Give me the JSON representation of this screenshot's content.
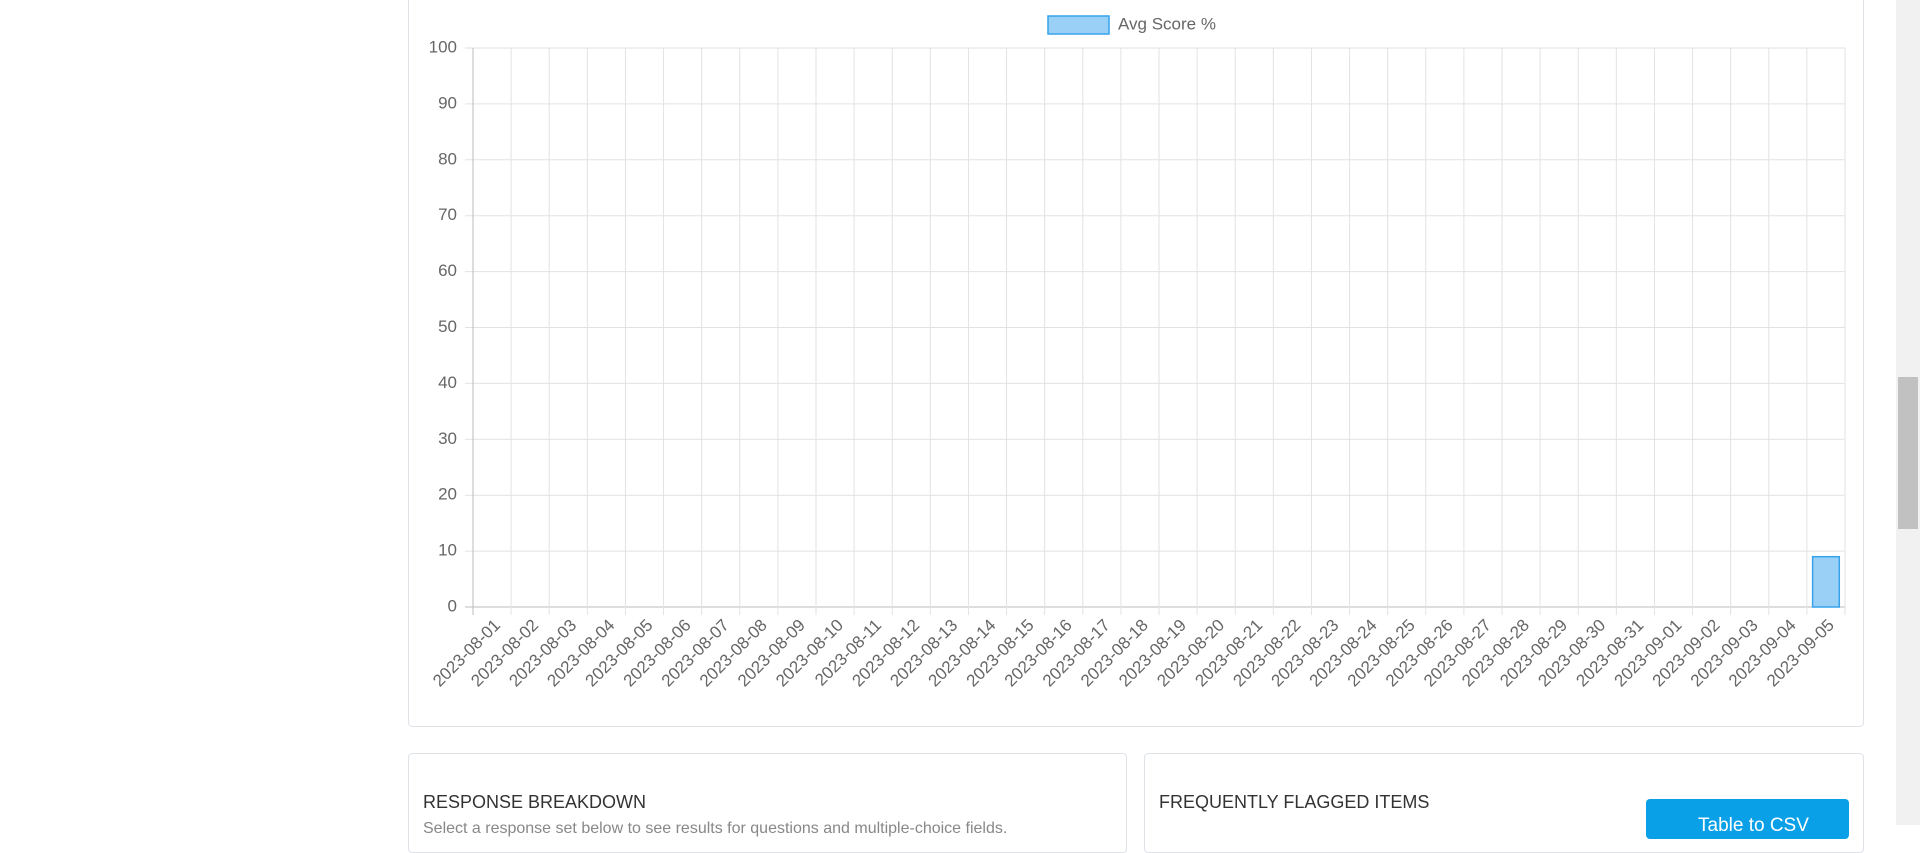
{
  "chart_data": {
    "type": "bar",
    "legend": "Avg Score %",
    "color": "#9ad0f5",
    "border_color": "#36a2eb",
    "categories": [
      "2023-08-01",
      "2023-08-02",
      "2023-08-03",
      "2023-08-04",
      "2023-08-05",
      "2023-08-06",
      "2023-08-07",
      "2023-08-08",
      "2023-08-09",
      "2023-08-10",
      "2023-08-11",
      "2023-08-12",
      "2023-08-13",
      "2023-08-14",
      "2023-08-15",
      "2023-08-16",
      "2023-08-17",
      "2023-08-18",
      "2023-08-19",
      "2023-08-20",
      "2023-08-21",
      "2023-08-22",
      "2023-08-23",
      "2023-08-24",
      "2023-08-25",
      "2023-08-26",
      "2023-08-27",
      "2023-08-28",
      "2023-08-29",
      "2023-08-30",
      "2023-08-31",
      "2023-09-01",
      "2023-09-02",
      "2023-09-03",
      "2023-09-04",
      "2023-09-05"
    ],
    "values": [
      0,
      0,
      0,
      0,
      0,
      0,
      0,
      0,
      0,
      0,
      0,
      0,
      0,
      0,
      0,
      0,
      0,
      0,
      0,
      0,
      0,
      0,
      0,
      0,
      0,
      0,
      0,
      0,
      0,
      0,
      0,
      0,
      0,
      0,
      0,
      9
    ],
    "ylim": [
      0,
      100
    ],
    "yticks": [
      0,
      10,
      20,
      30,
      40,
      50,
      60,
      70,
      80,
      90,
      100
    ],
    "grid": true
  },
  "response_breakdown": {
    "title": "RESPONSE BREAKDOWN",
    "subtitle": "Select a response set below to see results for questions and multiple-choice fields."
  },
  "flagged_items": {
    "title": "FREQUENTLY FLAGGED ITEMS",
    "button": "Table to CSV"
  }
}
